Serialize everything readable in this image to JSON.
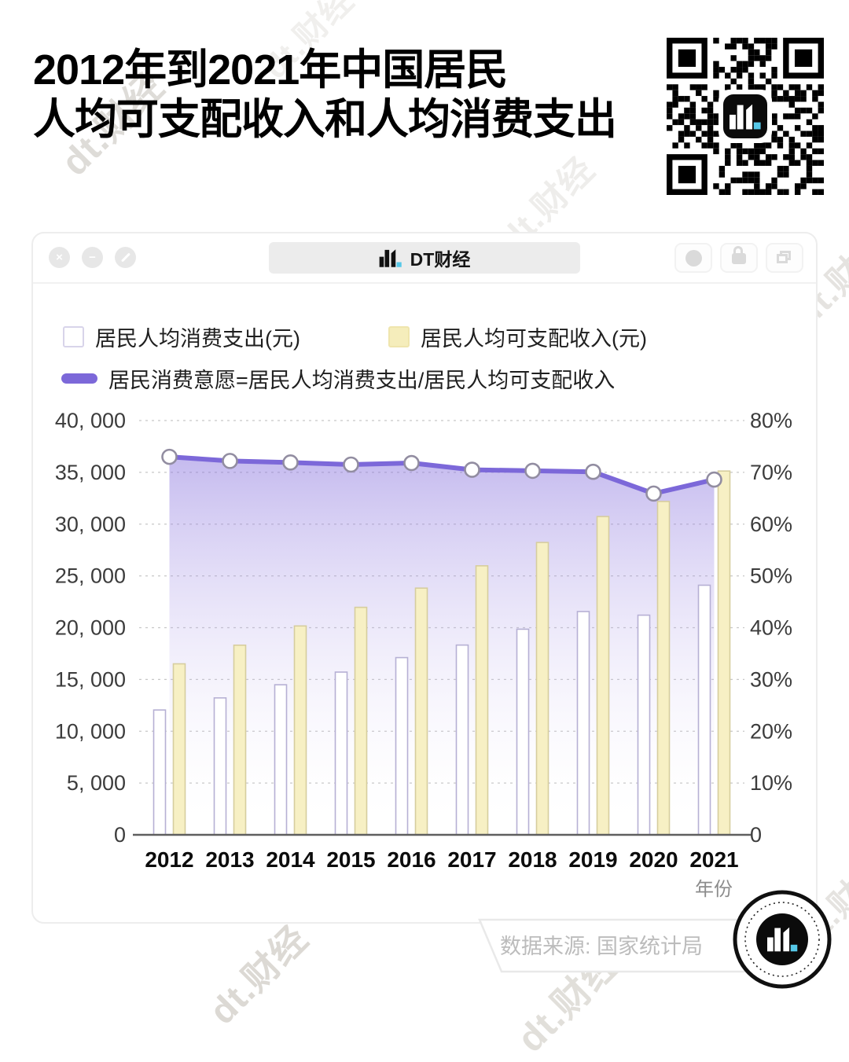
{
  "title": {
    "line1": "2012年到2021年中国居民",
    "line2": "人均可支配收入和人均消费支出"
  },
  "watermark": {
    "text": "dt.财经"
  },
  "window": {
    "address_label": "DT财经",
    "controls": {
      "close": "×",
      "minimize": "−"
    }
  },
  "legend": {
    "expenditure": "居民人均消费支出(元)",
    "income": "居民人均可支配收入(元)",
    "willingness": "居民消费意愿=居民人均消费支出/居民人均可支配收入"
  },
  "chart_data": {
    "type": "combo-bar-line",
    "categories": [
      "2012",
      "2013",
      "2014",
      "2015",
      "2016",
      "2017",
      "2018",
      "2019",
      "2020",
      "2021"
    ],
    "series": [
      {
        "name": "居民人均消费支出(元)",
        "type": "bar",
        "axis": "left",
        "fill": "#ffffff",
        "border": "#b6b0d4",
        "values": [
          12054,
          13220,
          14491,
          15712,
          17111,
          18322,
          19853,
          21559,
          21210,
          24100
        ]
      },
      {
        "name": "居民人均可支配收入(元)",
        "type": "bar",
        "axis": "left",
        "fill": "#f7f0c4",
        "border": "#d6cd9e",
        "values": [
          16510,
          18311,
          20167,
          21966,
          23821,
          25974,
          28228,
          30733,
          32189,
          35128
        ]
      },
      {
        "name": "居民消费意愿=居民人均消费支出/居民人均可支配收入",
        "type": "line",
        "axis": "right",
        "color": "#7c68d9",
        "values": [
          73.0,
          72.2,
          71.9,
          71.5,
          71.8,
          70.5,
          70.3,
          70.1,
          65.9,
          68.6
        ]
      }
    ],
    "left_axis": {
      "min": 0,
      "max": 40000,
      "tick_labels": [
        "0",
        "5, 000",
        "10, 000",
        "15, 000",
        "20, 000",
        "25, 000",
        "30, 000",
        "35, 000",
        "40, 000"
      ]
    },
    "right_axis": {
      "min": 0,
      "max": 80,
      "tick_labels": [
        "0",
        "10%",
        "20%",
        "30%",
        "40%",
        "50%",
        "60%",
        "70%",
        "80%"
      ]
    },
    "xlabel": "年份",
    "grid": "dashed-horizontal",
    "legend_position": "top-left"
  },
  "footer": {
    "source": "数据来源: 国家统计局"
  },
  "colors": {
    "accent_purple": "#7c68d9",
    "bar_yellow": "#f7f0c4",
    "logo_cyan": "#56c8e8",
    "black": "#0a0a0a"
  }
}
